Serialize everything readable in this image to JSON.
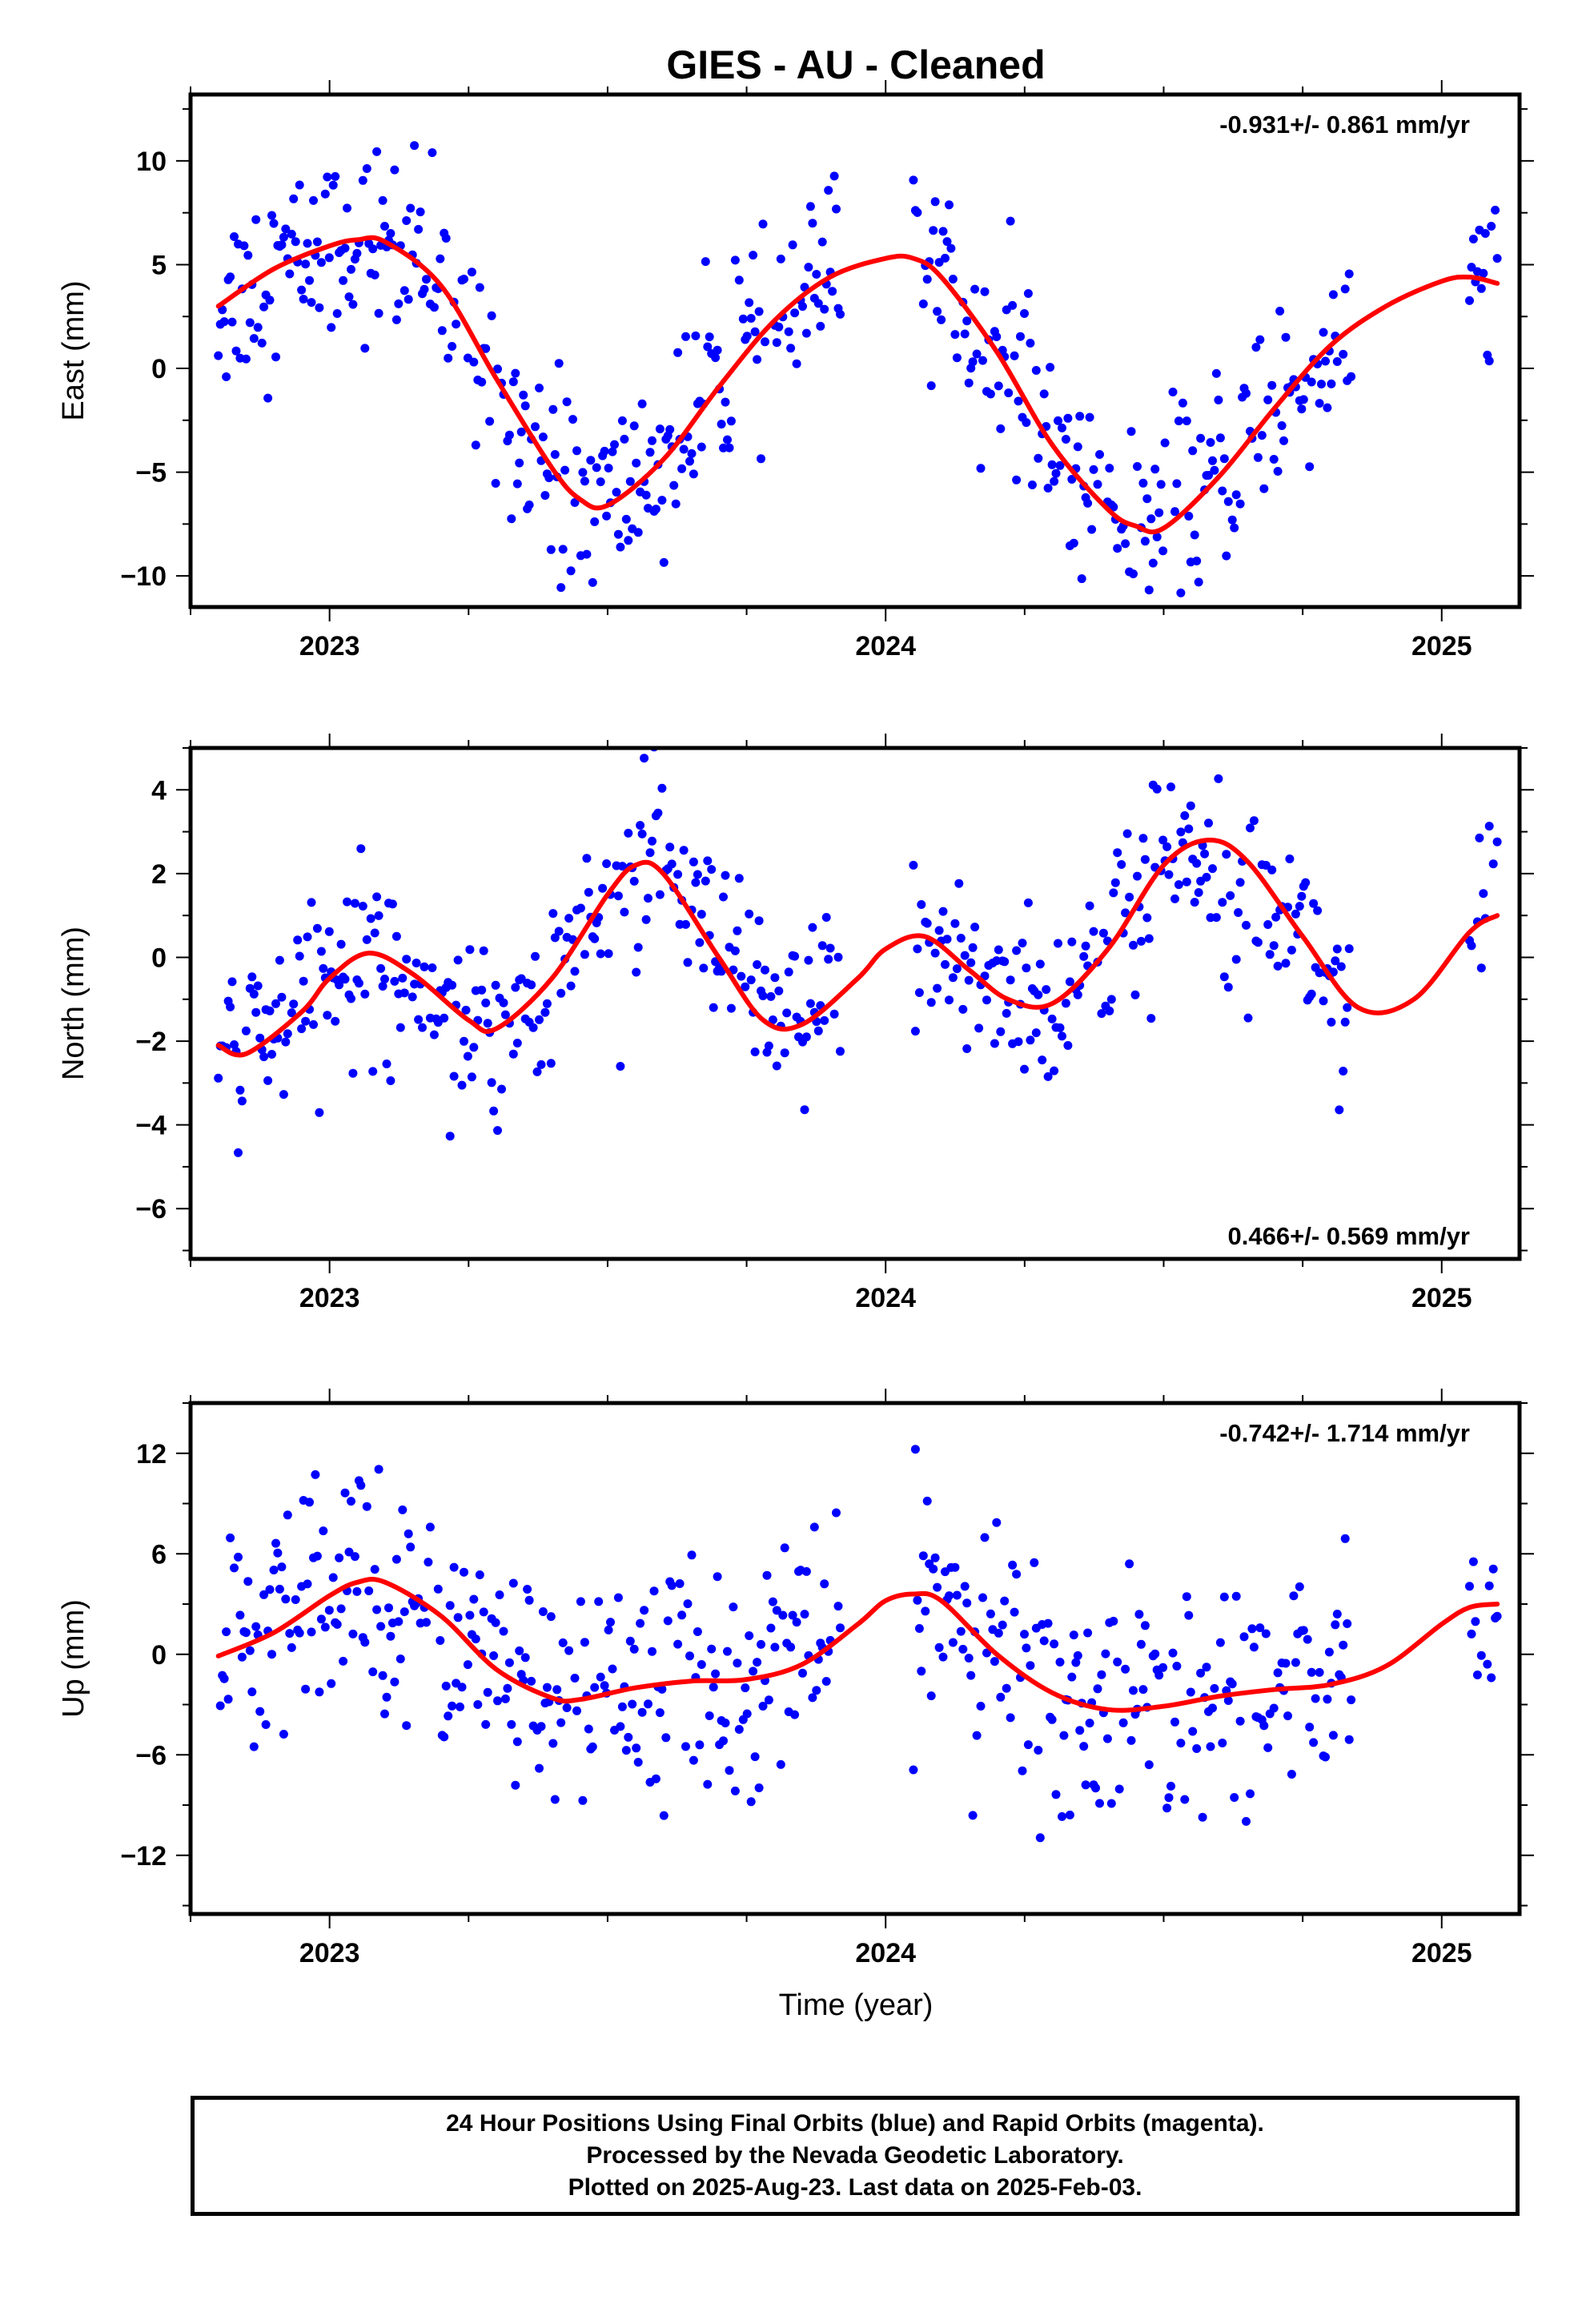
{
  "title": "GIES  - AU - Cleaned",
  "xlabel": "Time (year)",
  "footer": {
    "line1": "24 Hour Positions Using Final Orbits (blue) and Rapid Orbits (magenta).",
    "line2": "Processed by the Nevada Geodetic Laboratory.",
    "line3": "Plotted on 2025-Aug-23. Last data on 2025-Feb-03."
  },
  "colors": {
    "points": "#0000ff",
    "fit": "#ff0000",
    "frame": "#000000"
  },
  "chart_data": [
    {
      "type": "scatter",
      "ylabel": "East (mm)",
      "rate_label": "-0.931+/- 0.861 mm/yr",
      "rate_position": "top-right",
      "xlim": [
        2022.75,
        2025.14
      ],
      "ylim": [
        -11.5,
        13.2
      ],
      "x_ticks": [
        2023,
        2024,
        2025
      ],
      "y_ticks": [
        -10,
        -5,
        0,
        5,
        10
      ],
      "y_tick_labels": [
        "−10",
        "−5",
        "0",
        "5",
        "10"
      ],
      "fit_curve": {
        "name": "fit",
        "x": [
          2022.8,
          2022.9,
          2023.0,
          2023.05,
          2023.1,
          2023.2,
          2023.3,
          2023.4,
          2023.45,
          2023.5,
          2023.6,
          2023.7,
          2023.8,
          2023.9,
          2024.0,
          2024.05,
          2024.1,
          2024.2,
          2024.3,
          2024.4,
          2024.45,
          2024.5,
          2024.6,
          2024.7,
          2024.8,
          2024.9,
          2025.0,
          2025.05,
          2025.1
        ],
        "y": [
          3.0,
          4.8,
          5.9,
          6.2,
          6.1,
          4.0,
          -0.5,
          -4.8,
          -6.3,
          -6.6,
          -4.4,
          -0.9,
          2.3,
          4.4,
          5.3,
          5.3,
          4.4,
          0.8,
          -3.7,
          -6.8,
          -7.6,
          -7.7,
          -5.2,
          -1.9,
          1.1,
          3.0,
          4.2,
          4.4,
          4.1
        ]
      },
      "scatter_model": "fit curve ± ~2.3 mm noise, 2022.80–2023.92, 2024.05–2024.84, 2025.05–2025.10"
    },
    {
      "type": "scatter",
      "ylabel": "North (mm)",
      "rate_label": "0.466+/- 0.569 mm/yr",
      "rate_position": "bottom-right",
      "xlim": [
        2022.75,
        2025.14
      ],
      "ylim": [
        -7.2,
        5.0
      ],
      "x_ticks": [
        2023,
        2024,
        2025
      ],
      "y_ticks": [
        -6,
        -4,
        -2,
        0,
        2,
        4
      ],
      "y_tick_labels": [
        "−6",
        "−4",
        "−2",
        "0",
        "2",
        "4"
      ],
      "fit_curve": {
        "name": "fit",
        "x": [
          2022.8,
          2022.85,
          2022.95,
          2023.0,
          2023.07,
          2023.15,
          2023.25,
          2023.3,
          2023.4,
          2023.5,
          2023.55,
          2023.6,
          2023.7,
          2023.78,
          2023.85,
          2023.95,
          2024.0,
          2024.07,
          2024.15,
          2024.22,
          2024.3,
          2024.4,
          2024.5,
          2024.58,
          2024.65,
          2024.75,
          2024.85,
          2024.95,
          2025.05,
          2025.1
        ],
        "y": [
          -2.1,
          -2.3,
          -1.3,
          -0.5,
          0.1,
          -0.4,
          -1.5,
          -1.7,
          -0.5,
          1.5,
          2.2,
          2.0,
          0.0,
          -1.5,
          -1.6,
          -0.5,
          0.2,
          0.5,
          -0.3,
          -1.0,
          -1.1,
          0.2,
          2.2,
          2.8,
          2.3,
          0.5,
          -1.2,
          -1.0,
          0.6,
          1.0
        ]
      },
      "scatter_model": "fit curve ± ~1.1 mm noise, 2022.80–2023.92, 2024.05–2024.84, 2025.05–2025.10"
    },
    {
      "type": "scatter",
      "ylabel": "Up (mm)",
      "rate_label": "-0.742+/- 1.714 mm/yr",
      "rate_position": "top-right",
      "xlim": [
        2022.75,
        2025.14
      ],
      "ylim": [
        -15.5,
        15.0
      ],
      "x_ticks": [
        2023,
        2024,
        2025
      ],
      "x_tick_labels": [
        "2023",
        "2024",
        "2025"
      ],
      "y_ticks": [
        -12,
        -6,
        0,
        6,
        12
      ],
      "y_tick_labels": [
        "−12",
        "−6",
        "0",
        "6",
        "12"
      ],
      "fit_curve": {
        "name": "fit",
        "x": [
          2022.8,
          2022.9,
          2023.0,
          2023.05,
          2023.1,
          2023.2,
          2023.3,
          2023.4,
          2023.45,
          2023.55,
          2023.65,
          2023.75,
          2023.85,
          2023.95,
          2024.0,
          2024.05,
          2024.1,
          2024.2,
          2024.3,
          2024.4,
          2024.5,
          2024.6,
          2024.7,
          2024.8,
          2024.9,
          2025.0,
          2025.05,
          2025.1
        ],
        "y": [
          -0.1,
          1.3,
          3.5,
          4.3,
          4.3,
          2.3,
          -0.9,
          -2.6,
          -2.7,
          -2.0,
          -1.6,
          -1.5,
          -0.6,
          1.8,
          3.2,
          3.6,
          3.2,
          0.0,
          -2.3,
          -3.3,
          -3.1,
          -2.5,
          -2.1,
          -1.8,
          -0.7,
          1.8,
          2.8,
          3.0
        ]
      },
      "scatter_model": "fit curve ± ~3.5 mm noise, 2022.80–2023.92, 2024.05–2024.84, 2025.05–2025.10"
    }
  ]
}
